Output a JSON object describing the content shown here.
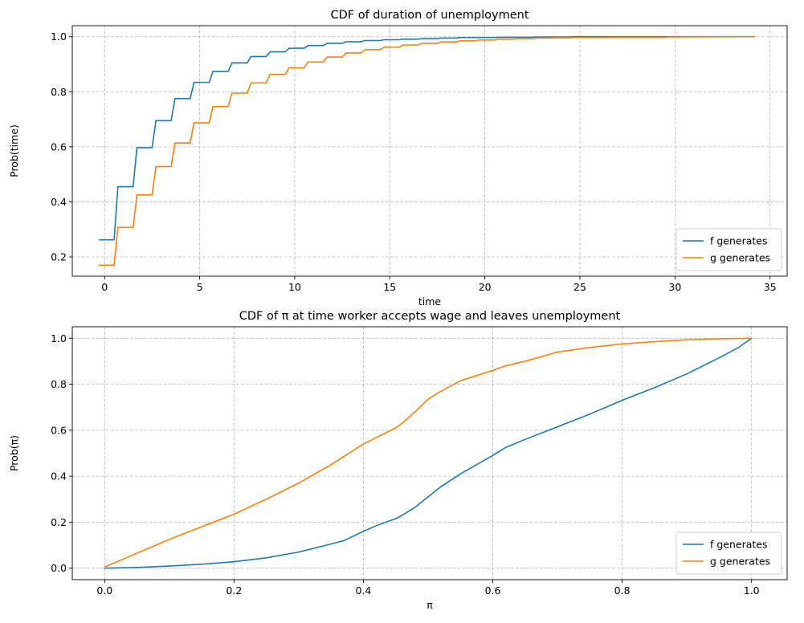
{
  "chart_data": [
    {
      "type": "line",
      "title": "CDF of duration of unemployment",
      "xlabel": "time",
      "ylabel": "Prob(time)",
      "xlim": [
        -1.7,
        35.9
      ],
      "ylim": [
        0.13,
        1.04
      ],
      "xticks": [
        0,
        5,
        10,
        15,
        20,
        25,
        30,
        35
      ],
      "yticks": [
        0.2,
        0.4,
        0.6,
        0.8,
        1.0
      ],
      "grid": true,
      "grid_style": "dashed",
      "legend_position": "lower-right",
      "series": [
        {
          "name": "f generates",
          "color": "#1f77b4",
          "x": [
            -0.3,
            0.5,
            0.7,
            1.5,
            1.7,
            2.5,
            2.7,
            3.5,
            3.7,
            4.5,
            4.7,
            5.5,
            5.7,
            6.5,
            6.7,
            7.5,
            7.7,
            8.5,
            8.7,
            9.5,
            9.7,
            10.5,
            10.7,
            11.5,
            11.7,
            12.5,
            12.7,
            13.5,
            13.7,
            14.5,
            14.7,
            15.5,
            15.7,
            16.5,
            16.7,
            17.5,
            17.7,
            18.5,
            18.7,
            20.5,
            20.7,
            22.5,
            22.7,
            24.5,
            24.7,
            28,
            34.2
          ],
          "y": [
            0.262,
            0.262,
            0.455,
            0.455,
            0.597,
            0.597,
            0.695,
            0.695,
            0.775,
            0.775,
            0.834,
            0.834,
            0.874,
            0.874,
            0.905,
            0.905,
            0.928,
            0.928,
            0.945,
            0.945,
            0.958,
            0.958,
            0.968,
            0.968,
            0.976,
            0.976,
            0.982,
            0.982,
            0.986,
            0.986,
            0.989,
            0.989,
            0.991,
            0.991,
            0.993,
            0.993,
            0.995,
            0.995,
            0.997,
            0.997,
            0.998,
            0.998,
            0.999,
            0.999,
            1.0,
            1.0,
            1.0
          ]
        },
        {
          "name": "g generates",
          "color": "#ff7f0e",
          "x": [
            -0.3,
            0.5,
            0.7,
            1.5,
            1.7,
            2.5,
            2.7,
            3.5,
            3.7,
            4.5,
            4.7,
            5.5,
            5.7,
            6.5,
            6.7,
            7.5,
            7.7,
            8.5,
            8.7,
            9.5,
            9.7,
            10.5,
            10.7,
            11.5,
            11.7,
            12.5,
            12.7,
            13.5,
            13.7,
            14.5,
            14.7,
            15.5,
            15.7,
            16.5,
            16.7,
            17.5,
            17.7,
            18.5,
            18.7,
            19.5,
            19.7,
            20.5,
            20.7,
            21.5,
            21.7,
            22.5,
            22.7,
            23.5,
            23.7,
            24.5,
            24.7,
            26.5,
            26.7,
            29.5,
            29.7,
            34.2
          ],
          "y": [
            0.17,
            0.17,
            0.307,
            0.307,
            0.425,
            0.425,
            0.528,
            0.528,
            0.614,
            0.614,
            0.687,
            0.687,
            0.746,
            0.746,
            0.795,
            0.795,
            0.832,
            0.832,
            0.863,
            0.863,
            0.887,
            0.887,
            0.908,
            0.908,
            0.926,
            0.926,
            0.941,
            0.941,
            0.953,
            0.953,
            0.962,
            0.962,
            0.97,
            0.97,
            0.976,
            0.976,
            0.981,
            0.981,
            0.985,
            0.985,
            0.988,
            0.988,
            0.991,
            0.991,
            0.993,
            0.993,
            0.995,
            0.995,
            0.996,
            0.996,
            0.997,
            0.997,
            0.998,
            0.998,
            0.999,
            1.0
          ]
        }
      ]
    },
    {
      "type": "line",
      "title": "CDF of π at time worker accepts wage and leaves unemployment",
      "xlabel": "π",
      "ylabel": "Prob(π)",
      "xlim": [
        -0.05,
        1.055
      ],
      "ylim": [
        -0.05,
        1.05
      ],
      "xticks": [
        0.0,
        0.2,
        0.4,
        0.6,
        0.8,
        1.0
      ],
      "yticks": [
        0.0,
        0.2,
        0.4,
        0.6,
        0.8,
        1.0
      ],
      "grid": true,
      "grid_style": "dashed",
      "legend_position": "lower-right",
      "series": [
        {
          "name": "f generates",
          "color": "#1f77b4",
          "x": [
            0,
            0.05,
            0.1,
            0.15,
            0.2,
            0.25,
            0.3,
            0.35,
            0.37,
            0.4,
            0.42,
            0.45,
            0.46,
            0.48,
            0.5,
            0.52,
            0.55,
            0.6,
            0.62,
            0.65,
            0.7,
            0.75,
            0.8,
            0.85,
            0.9,
            0.95,
            0.98,
            1.0
          ],
          "y": [
            0.0,
            0.003,
            0.009,
            0.017,
            0.028,
            0.045,
            0.07,
            0.105,
            0.12,
            0.16,
            0.185,
            0.215,
            0.23,
            0.265,
            0.31,
            0.355,
            0.41,
            0.49,
            0.525,
            0.56,
            0.615,
            0.67,
            0.73,
            0.785,
            0.845,
            0.915,
            0.96,
            1.0
          ]
        },
        {
          "name": "g generates",
          "color": "#ff7f0e",
          "x": [
            0,
            0.05,
            0.1,
            0.15,
            0.2,
            0.25,
            0.3,
            0.35,
            0.4,
            0.45,
            0.46,
            0.48,
            0.5,
            0.52,
            0.55,
            0.6,
            0.62,
            0.65,
            0.7,
            0.75,
            0.8,
            0.85,
            0.9,
            0.95,
            1.0
          ],
          "y": [
            0.005,
            0.065,
            0.125,
            0.18,
            0.235,
            0.3,
            0.37,
            0.45,
            0.54,
            0.61,
            0.63,
            0.68,
            0.735,
            0.77,
            0.815,
            0.86,
            0.88,
            0.9,
            0.94,
            0.96,
            0.975,
            0.985,
            0.993,
            0.998,
            1.0
          ]
        }
      ]
    }
  ]
}
